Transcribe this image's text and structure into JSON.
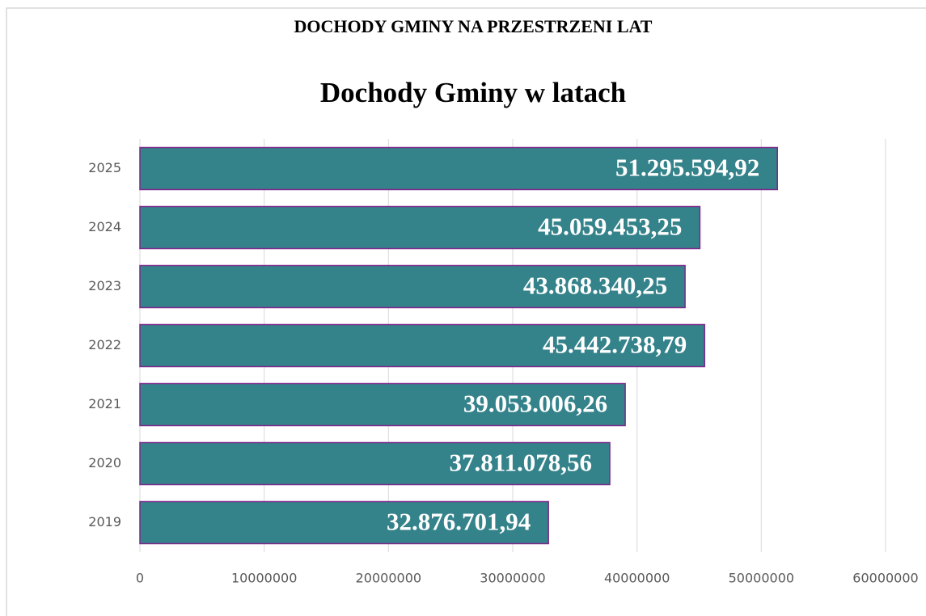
{
  "header": {
    "title": "DOCHODY GMINY NA PRZESTRZENI LAT"
  },
  "chart_data": {
    "type": "bar",
    "orientation": "horizontal",
    "title": "Dochody Gminy w latach",
    "categories": [
      "2025",
      "2024",
      "2023",
      "2022",
      "2021",
      "2020",
      "2019"
    ],
    "values": [
      51295594.92,
      45059453.25,
      43868340.25,
      45442738.79,
      39053006.26,
      37811078.56,
      32876701.94
    ],
    "value_labels": [
      "51.295.594,92",
      "45.059.453,25",
      "43.868.340,25",
      "45.442.738,79",
      "39.053.006,26",
      "37.811.078,56",
      "32.876.701,94"
    ],
    "color": "#34828a",
    "edge_color": "#7b2a8a",
    "xlim": [
      0,
      60000000
    ],
    "xticks": [
      0,
      10000000,
      20000000,
      30000000,
      40000000,
      50000000,
      60000000
    ],
    "grid": true
  }
}
